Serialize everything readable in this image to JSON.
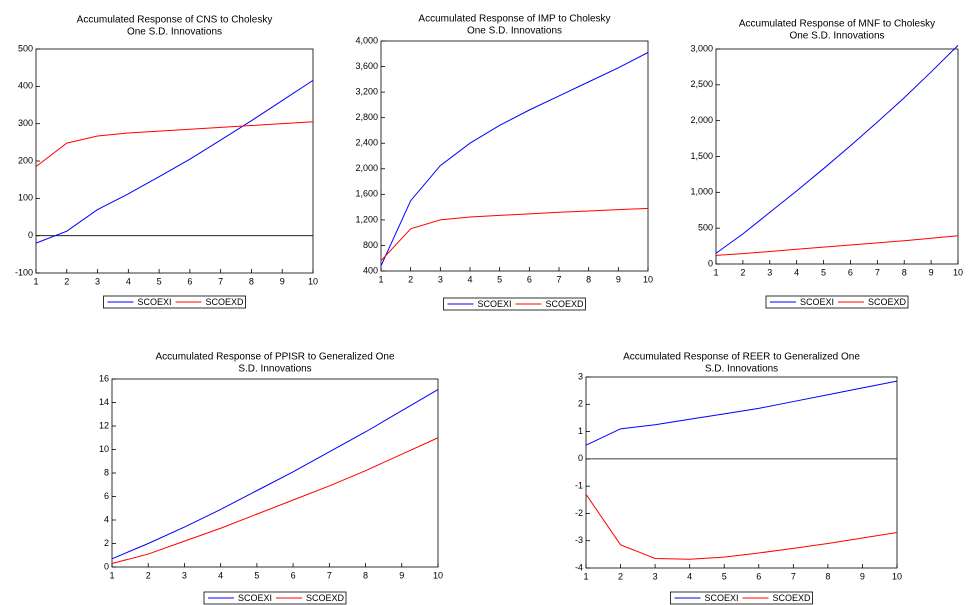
{
  "chart_data": [
    {
      "type": "line",
      "title": [
        "Accumulated Response of CNS to Cholesky",
        "One S.D. Innovations"
      ],
      "x": [
        1,
        2,
        3,
        4,
        5,
        6,
        7,
        8,
        9,
        10
      ],
      "xlim": [
        1,
        10
      ],
      "xticks": [
        1,
        2,
        3,
        4,
        5,
        6,
        7,
        8,
        9,
        10
      ],
      "ylim": [
        -100,
        500
      ],
      "yticks": [
        -100,
        0,
        100,
        200,
        300,
        400,
        500
      ],
      "zero_line": true,
      "series": [
        {
          "name": "SCOEXI",
          "color": "#0000ff",
          "values": [
            -20,
            12,
            70,
            112,
            158,
            205,
            256,
            308,
            362,
            416
          ]
        },
        {
          "name": "SCOEXD",
          "color": "#ff0000",
          "values": [
            185,
            248,
            267,
            275,
            280,
            285,
            290,
            295,
            300,
            305
          ]
        }
      ]
    },
    {
      "type": "line",
      "title": [
        "Accumulated Response of IMP to Cholesky",
        "One S.D. Innovations"
      ],
      "x": [
        1,
        2,
        3,
        4,
        5,
        6,
        7,
        8,
        9,
        10
      ],
      "xlim": [
        1,
        10
      ],
      "xticks": [
        1,
        2,
        3,
        4,
        5,
        6,
        7,
        8,
        9,
        10
      ],
      "ylim": [
        400,
        4000
      ],
      "yticks": [
        400,
        800,
        {
          "value": 1200,
          "label": "1,200"
        },
        {
          "value": 1600,
          "label": "1,600"
        },
        {
          "value": 2000,
          "label": "2,000"
        },
        {
          "value": 2400,
          "label": "2,400"
        },
        {
          "value": 2800,
          "label": "2,800"
        },
        {
          "value": 3200,
          "label": "3,200"
        },
        {
          "value": 3600,
          "label": "3,600"
        },
        {
          "value": 4000,
          "label": "4,000"
        }
      ],
      "zero_line": false,
      "series": [
        {
          "name": "SCOEXI",
          "color": "#0000ff",
          "values": [
            480,
            1500,
            2050,
            2400,
            2680,
            2920,
            3140,
            3360,
            3580,
            3820
          ]
        },
        {
          "name": "SCOEXD",
          "color": "#ff0000",
          "values": [
            560,
            1060,
            1200,
            1245,
            1270,
            1295,
            1320,
            1340,
            1360,
            1380
          ]
        }
      ]
    },
    {
      "type": "line",
      "title": [
        "Accumulated Response of MNF to Cholesky",
        "One S.D. Innovations"
      ],
      "x": [
        1,
        2,
        3,
        4,
        5,
        6,
        7,
        8,
        9,
        10
      ],
      "xlim": [
        1,
        10
      ],
      "xticks": [
        1,
        2,
        3,
        4,
        5,
        6,
        7,
        8,
        9,
        10
      ],
      "ylim": [
        0,
        3000
      ],
      "yticks": [
        0,
        500,
        {
          "value": 1000,
          "label": "1,000"
        },
        {
          "value": 1500,
          "label": "1,500"
        },
        {
          "value": 2000,
          "label": "2,000"
        },
        {
          "value": 2500,
          "label": "2,500"
        },
        {
          "value": 3000,
          "label": "3,000"
        }
      ],
      "zero_line": false,
      "series": [
        {
          "name": "SCOEXI",
          "color": "#0000ff",
          "values": [
            150,
            420,
            720,
            1020,
            1330,
            1650,
            1980,
            2320,
            2680,
            3050
          ]
        },
        {
          "name": "SCOEXD",
          "color": "#ff0000",
          "values": [
            120,
            145,
            175,
            205,
            235,
            265,
            295,
            325,
            360,
            395
          ]
        }
      ]
    },
    {
      "type": "line",
      "title": [
        "Accumulated Response of PPISR to Generalized One",
        "S.D. Innovations"
      ],
      "x": [
        1,
        2,
        3,
        4,
        5,
        6,
        7,
        8,
        9,
        10
      ],
      "xlim": [
        1,
        10
      ],
      "xticks": [
        1,
        2,
        3,
        4,
        5,
        6,
        7,
        8,
        9,
        10
      ],
      "ylim": [
        0,
        16
      ],
      "yticks": [
        0,
        2,
        4,
        6,
        8,
        10,
        12,
        14,
        16
      ],
      "zero_line": false,
      "series": [
        {
          "name": "SCOEXI",
          "color": "#0000ff",
          "values": [
            0.7,
            2.0,
            3.4,
            4.9,
            6.5,
            8.1,
            9.8,
            11.5,
            13.3,
            15.1
          ]
        },
        {
          "name": "SCOEXD",
          "color": "#ff0000",
          "values": [
            0.3,
            1.1,
            2.2,
            3.3,
            4.5,
            5.7,
            6.9,
            8.2,
            9.6,
            11.0
          ]
        }
      ]
    },
    {
      "type": "line",
      "title": [
        "Accumulated Response of REER to Generalized One",
        "S.D. Innovations"
      ],
      "x": [
        1,
        2,
        3,
        4,
        5,
        6,
        7,
        8,
        9,
        10
      ],
      "xlim": [
        1,
        10
      ],
      "xticks": [
        1,
        2,
        3,
        4,
        5,
        6,
        7,
        8,
        9,
        10
      ],
      "ylim": [
        -4,
        3
      ],
      "yticks": [
        -4,
        -3,
        -2,
        -1,
        0,
        1,
        2,
        3
      ],
      "zero_line": true,
      "series": [
        {
          "name": "SCOEXI",
          "color": "#0000ff",
          "values": [
            0.5,
            1.1,
            1.25,
            1.45,
            1.65,
            1.85,
            2.1,
            2.35,
            2.6,
            2.85
          ]
        },
        {
          "name": "SCOEXD",
          "color": "#ff0000",
          "values": [
            -1.3,
            -3.15,
            -3.65,
            -3.68,
            -3.6,
            -3.45,
            -3.28,
            -3.1,
            -2.9,
            -2.7
          ]
        }
      ]
    }
  ]
}
